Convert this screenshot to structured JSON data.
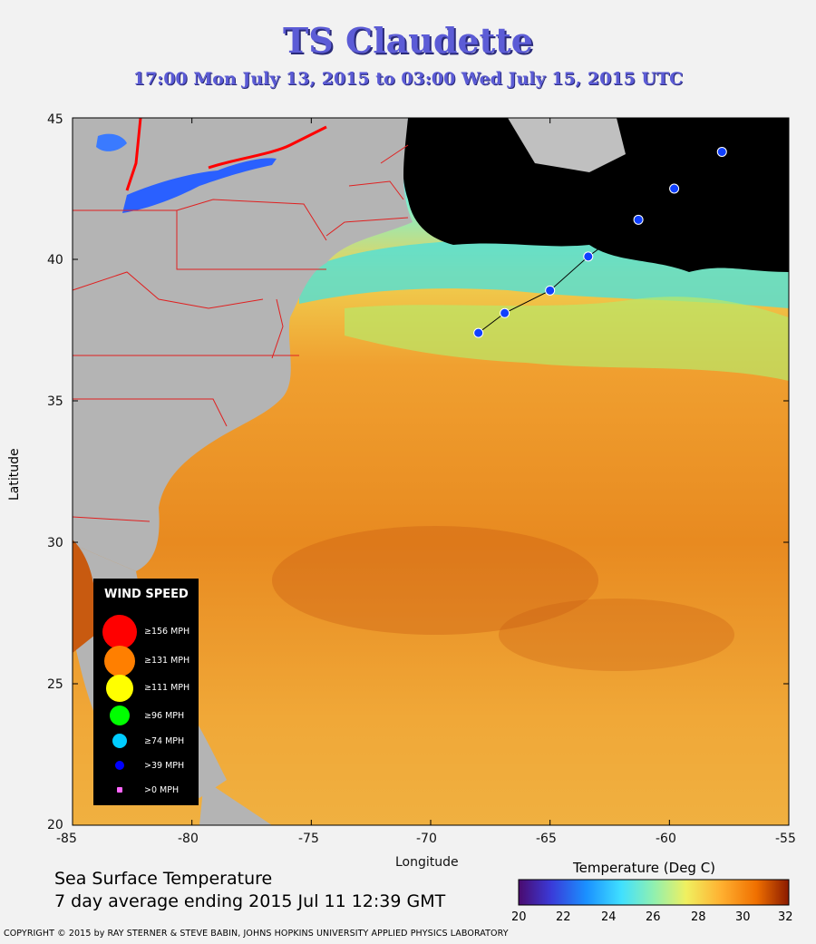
{
  "title": "TS Claudette",
  "subtitle": "17:00 Mon July 13, 2015 to 03:00 Wed July 15, 2015  UTC",
  "axes": {
    "xlabel": "Longitude",
    "ylabel": "Latitude",
    "x_ticks": [
      "-85",
      "-80",
      "-75",
      "-70",
      "-65",
      "-60",
      "-55"
    ],
    "y_ticks": [
      "45",
      "40",
      "35",
      "30",
      "25",
      "20"
    ],
    "x_range": [
      -85,
      -55
    ],
    "y_range": [
      20,
      45
    ]
  },
  "caption": {
    "line1": "Sea Surface Temperature",
    "line2": "7 day average ending 2015 Jul 11 12:39 GMT"
  },
  "colorbar": {
    "title": "Temperature (Deg C)",
    "ticks": [
      "20",
      "22",
      "24",
      "26",
      "28",
      "30",
      "32"
    ],
    "range": [
      20,
      32
    ],
    "stops": [
      "#4a0a6e",
      "#3a3ad8",
      "#1a90ff",
      "#40e0ff",
      "#90f0b0",
      "#f0f060",
      "#ffb030",
      "#f07000",
      "#8a1a00"
    ]
  },
  "legend": {
    "title": "WIND SPEED",
    "items": [
      {
        "label": "≥156 MPH",
        "color": "#ff0000"
      },
      {
        "label": "≥131 MPH",
        "color": "#ff7f00"
      },
      {
        "label": "≥111 MPH",
        "color": "#ffff00"
      },
      {
        "label": "≥96 MPH",
        "color": "#00ff00"
      },
      {
        "label": "≥74 MPH",
        "color": "#00ccff"
      },
      {
        "label": ">39 MPH",
        "color": "#0000ff"
      },
      {
        "label": ">0 MPH",
        "color": "#ff66ff"
      }
    ]
  },
  "track": {
    "points": [
      {
        "lon": -68.0,
        "lat": 37.4
      },
      {
        "lon": -66.9,
        "lat": 38.1
      },
      {
        "lon": -65.0,
        "lat": 38.9
      },
      {
        "lon": -63.4,
        "lat": 40.1
      },
      {
        "lon": -61.3,
        "lat": 41.4
      },
      {
        "lon": -59.8,
        "lat": 42.5
      },
      {
        "lon": -57.8,
        "lat": 43.8
      }
    ],
    "color": "#1040ff"
  },
  "copyright": "COPYRIGHT © 2015 by RAY STERNER & STEVE BABIN, JOHNS HOPKINS UNIVERSITY APPLIED PHYSICS LABORATORY"
}
